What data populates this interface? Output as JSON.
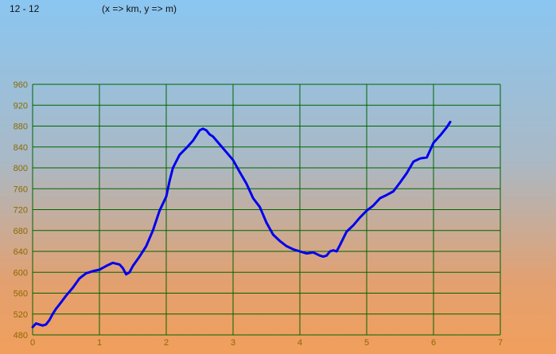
{
  "header": {
    "range_label": "12 - 12",
    "units_label": "(x => km, y => m)"
  },
  "chart_data": {
    "type": "line",
    "title": "",
    "xlabel": "",
    "ylabel": "",
    "xlim": [
      0,
      7
    ],
    "ylim": [
      480,
      960
    ],
    "x_ticks": [
      "0",
      "1",
      "2",
      "3",
      "4",
      "5",
      "6",
      "7"
    ],
    "y_ticks": [
      "480",
      "520",
      "560",
      "600",
      "640",
      "680",
      "720",
      "760",
      "800",
      "840",
      "880",
      "920",
      "960"
    ],
    "grid": true,
    "grid_color": "#006400",
    "line_color": "#0000ee",
    "series": [
      {
        "x": [
          0.0,
          0.05,
          0.1,
          0.15,
          0.2,
          0.25,
          0.3,
          0.35,
          0.4,
          0.5,
          0.6,
          0.7,
          0.8,
          0.9,
          1.0,
          1.1,
          1.2,
          1.3,
          1.35,
          1.4,
          1.45,
          1.5,
          1.6,
          1.7,
          1.8,
          1.9,
          2.0,
          2.05,
          2.1,
          2.2,
          2.3,
          2.4,
          2.5,
          2.55,
          2.6,
          2.65,
          2.7,
          2.8,
          2.9,
          3.0,
          3.1,
          3.2,
          3.3,
          3.4,
          3.5,
          3.6,
          3.7,
          3.8,
          3.9,
          4.0,
          4.1,
          4.2,
          4.3,
          4.35,
          4.4,
          4.45,
          4.5,
          4.55,
          4.6,
          4.7,
          4.8,
          4.9,
          5.0,
          5.1,
          5.2,
          5.3,
          5.4,
          5.5,
          5.6,
          5.7,
          5.8,
          5.9,
          6.0,
          6.1,
          6.2,
          6.25
        ],
        "y": [
          495,
          502,
          500,
          498,
          500,
          508,
          520,
          530,
          538,
          555,
          570,
          588,
          598,
          602,
          605,
          612,
          618,
          615,
          608,
          596,
          600,
          612,
          630,
          650,
          680,
          718,
          745,
          775,
          800,
          825,
          838,
          852,
          872,
          875,
          872,
          864,
          860,
          845,
          830,
          815,
          792,
          770,
          742,
          725,
          695,
          672,
          660,
          650,
          644,
          640,
          636,
          638,
          632,
          630,
          632,
          640,
          642,
          640,
          652,
          678,
          690,
          705,
          718,
          728,
          742,
          748,
          755,
          772,
          790,
          812,
          818,
          820,
          848,
          862,
          878,
          888
        ]
      }
    ]
  }
}
